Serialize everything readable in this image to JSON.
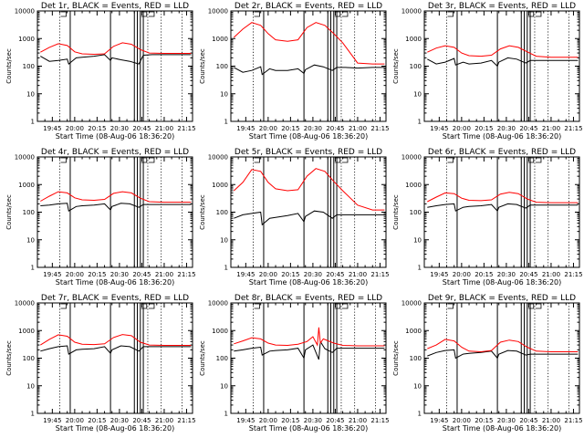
{
  "colors": {
    "events": "#000000",
    "lld": "#ff0000",
    "background": "#ffffff"
  },
  "chart_data": [
    {
      "type": "line",
      "title": "Det 1r, BLACK = Events, RED = LLD",
      "xlabel": "Start Time (08-Aug-06 18:36:20)",
      "ylabel": "Counts/sec",
      "y_scale": "log",
      "ylim": [
        1,
        10000
      ],
      "y_ticks": [
        "1",
        "10",
        "100",
        "1000",
        "10000"
      ],
      "x_ticks": [
        "19:45",
        "20:00",
        "20:15",
        "20:30",
        "20:45",
        "21:00",
        "21:15"
      ],
      "series": [
        {
          "name": "BLACK = Events",
          "color": "#000000",
          "x": [
            "19:37",
            "19:43",
            "19:49",
            "19:55",
            "19:56",
            "20:01",
            "20:05",
            "20:13",
            "20:20",
            "20:24",
            "20:25",
            "20:31",
            "20:37",
            "20:43",
            "20:46",
            "20:52",
            "21:00",
            "21:10",
            "21:18"
          ],
          "values": [
            230,
            150,
            160,
            180,
            120,
            200,
            210,
            230,
            260,
            160,
            200,
            170,
            150,
            120,
            250,
            260,
            260,
            260,
            260
          ]
        },
        {
          "name": "RED = LLD",
          "color": "#ff0000",
          "x": [
            "19:37",
            "19:43",
            "19:49",
            "19:55",
            "20:00",
            "20:05",
            "20:13",
            "20:20",
            "20:26",
            "20:32",
            "20:38",
            "20:44",
            "20:50",
            "21:00",
            "21:10",
            "21:18"
          ],
          "values": [
            320,
            480,
            650,
            560,
            330,
            280,
            270,
            280,
            520,
            700,
            620,
            400,
            300,
            290,
            290,
            290
          ]
        }
      ]
    },
    {
      "type": "line",
      "title": "Det 2r, BLACK = Events, RED = LLD",
      "xlabel": "Start Time (08-Aug-06 18:36:20)",
      "ylabel": "Counts/sec",
      "y_scale": "log",
      "ylim": [
        1,
        10000
      ],
      "y_ticks": [
        "1",
        "10",
        "100",
        "1000",
        "10000"
      ],
      "x_ticks": [
        "19:45",
        "20:00",
        "20:15",
        "20:30",
        "20:45",
        "21:00",
        "21:15"
      ],
      "series": [
        {
          "name": "BLACK = Events",
          "color": "#000000",
          "x": [
            "19:37",
            "19:43",
            "19:49",
            "19:55",
            "19:56",
            "20:01",
            "20:05",
            "20:13",
            "20:20",
            "20:24",
            "20:25",
            "20:31",
            "20:37",
            "20:43",
            "20:46",
            "20:52",
            "21:00",
            "21:10",
            "21:18"
          ],
          "values": [
            90,
            60,
            70,
            95,
            50,
            80,
            70,
            70,
            80,
            55,
            75,
            110,
            95,
            70,
            90,
            90,
            85,
            90,
            90
          ]
        },
        {
          "name": "RED = LLD",
          "color": "#ff0000",
          "x": [
            "19:37",
            "19:43",
            "19:49",
            "19:55",
            "20:00",
            "20:05",
            "20:13",
            "20:20",
            "20:26",
            "20:32",
            "20:38",
            "20:44",
            "20:50",
            "21:00",
            "21:10",
            "21:18"
          ],
          "values": [
            1100,
            2200,
            3800,
            3000,
            1500,
            900,
            800,
            900,
            2500,
            3800,
            3000,
            1500,
            700,
            130,
            120,
            120
          ]
        }
      ]
    },
    {
      "type": "line",
      "title": "Det 3r, BLACK = Events, RED = LLD",
      "xlabel": "Start Time (08-Aug-06 18:36:20)",
      "ylabel": "Counts/sec",
      "y_scale": "log",
      "ylim": [
        1,
        10000
      ],
      "y_ticks": [
        "1",
        "10",
        "100",
        "1000",
        "10000"
      ],
      "x_ticks": [
        "19:45",
        "20:00",
        "20:15",
        "20:30",
        "20:45",
        "21:00",
        "21:15"
      ],
      "series": [
        {
          "name": "BLACK = Events",
          "color": "#000000",
          "x": [
            "19:37",
            "19:43",
            "19:49",
            "19:55",
            "19:56",
            "20:01",
            "20:05",
            "20:13",
            "20:20",
            "20:24",
            "20:25",
            "20:31",
            "20:37",
            "20:43",
            "20:46",
            "20:52",
            "21:00",
            "21:10",
            "21:18"
          ],
          "values": [
            180,
            120,
            140,
            190,
            110,
            140,
            120,
            130,
            160,
            100,
            140,
            200,
            180,
            130,
            160,
            160,
            160,
            160,
            160
          ]
        },
        {
          "name": "RED = LLD",
          "color": "#ff0000",
          "x": [
            "19:37",
            "19:43",
            "19:49",
            "19:55",
            "20:00",
            "20:05",
            "20:13",
            "20:20",
            "20:26",
            "20:32",
            "20:38",
            "20:44",
            "20:50",
            "21:00",
            "21:10",
            "21:18"
          ],
          "values": [
            320,
            450,
            550,
            480,
            300,
            240,
            230,
            250,
            420,
            550,
            480,
            330,
            230,
            210,
            210,
            210
          ]
        }
      ]
    },
    {
      "type": "line",
      "title": "Det 4r, BLACK = Events, RED = LLD",
      "xlabel": "Start Time (08-Aug-06 18:36:20)",
      "ylabel": "Counts/sec",
      "y_scale": "log",
      "ylim": [
        1,
        10000
      ],
      "y_ticks": [
        "1",
        "10",
        "100",
        "1000",
        "10000"
      ],
      "x_ticks": [
        "19:45",
        "20:00",
        "20:15",
        "20:30",
        "20:45",
        "21:00",
        "21:15"
      ],
      "series": [
        {
          "name": "BLACK = Events",
          "color": "#000000",
          "x": [
            "19:37",
            "19:43",
            "19:49",
            "19:55",
            "19:56",
            "20:01",
            "20:05",
            "20:13",
            "20:20",
            "20:24",
            "20:25",
            "20:31",
            "20:37",
            "20:43",
            "20:46",
            "20:52",
            "21:00",
            "21:10",
            "21:18"
          ],
          "values": [
            170,
            180,
            200,
            210,
            110,
            160,
            170,
            180,
            200,
            120,
            160,
            210,
            200,
            150,
            190,
            190,
            190,
            190,
            190
          ]
        },
        {
          "name": "RED = LLD",
          "color": "#ff0000",
          "x": [
            "19:37",
            "19:43",
            "19:49",
            "19:55",
            "20:00",
            "20:05",
            "20:13",
            "20:20",
            "20:26",
            "20:32",
            "20:38",
            "20:44",
            "20:50",
            "21:00",
            "21:10",
            "21:18"
          ],
          "values": [
            250,
            380,
            550,
            500,
            330,
            280,
            270,
            290,
            480,
            550,
            500,
            320,
            240,
            230,
            230,
            230
          ]
        }
      ]
    },
    {
      "type": "line",
      "title": "Det 5r, BLACK = Events, RED = LLD",
      "xlabel": "Start Time (08-Aug-06 18:36:20)",
      "ylabel": "Counts/sec",
      "y_scale": "log",
      "ylim": [
        1,
        10000
      ],
      "y_ticks": [
        "1",
        "10",
        "100",
        "1000",
        "10000"
      ],
      "x_ticks": [
        "19:45",
        "20:00",
        "20:15",
        "20:30",
        "20:45",
        "21:00",
        "21:15"
      ],
      "series": [
        {
          "name": "BLACK = Events",
          "color": "#000000",
          "x": [
            "19:37",
            "19:43",
            "19:49",
            "19:55",
            "19:56",
            "20:01",
            "20:05",
            "20:13",
            "20:20",
            "20:24",
            "20:25",
            "20:31",
            "20:37",
            "20:43",
            "20:46",
            "20:52",
            "21:00",
            "21:10",
            "21:18"
          ],
          "values": [
            60,
            80,
            90,
            100,
            35,
            60,
            65,
            75,
            90,
            45,
            70,
            110,
            100,
            60,
            80,
            80,
            80,
            80,
            80
          ]
        },
        {
          "name": "RED = LLD",
          "color": "#ff0000",
          "x": [
            "19:37",
            "19:43",
            "19:49",
            "19:55",
            "20:00",
            "20:05",
            "20:13",
            "20:20",
            "20:26",
            "20:32",
            "20:38",
            "20:44",
            "20:50",
            "21:00",
            "21:10",
            "21:18"
          ],
          "values": [
            600,
            1200,
            3500,
            3000,
            1200,
            700,
            600,
            650,
            2000,
            3800,
            3000,
            1300,
            600,
            180,
            120,
            120
          ]
        }
      ]
    },
    {
      "type": "line",
      "title": "Det 6r, BLACK = Events, RED = LLD",
      "xlabel": "Start Time (08-Aug-06 18:36:20)",
      "ylabel": "Counts/sec",
      "y_scale": "log",
      "ylim": [
        1,
        10000
      ],
      "y_ticks": [
        "1",
        "10",
        "100",
        "1000",
        "10000"
      ],
      "x_ticks": [
        "19:45",
        "20:00",
        "20:15",
        "20:30",
        "20:45",
        "21:00",
        "21:15"
      ],
      "series": [
        {
          "name": "BLACK = Events",
          "color": "#000000",
          "x": [
            "19:37",
            "19:43",
            "19:49",
            "19:55",
            "19:56",
            "20:01",
            "20:05",
            "20:13",
            "20:20",
            "20:24",
            "20:25",
            "20:31",
            "20:37",
            "20:43",
            "20:46",
            "20:52",
            "21:00",
            "21:10",
            "21:18"
          ],
          "values": [
            150,
            170,
            190,
            200,
            110,
            150,
            160,
            170,
            190,
            110,
            150,
            200,
            190,
            140,
            180,
            180,
            180,
            180,
            180
          ]
        },
        {
          "name": "RED = LLD",
          "color": "#ff0000",
          "x": [
            "19:37",
            "19:43",
            "19:49",
            "19:55",
            "20:00",
            "20:05",
            "20:13",
            "20:20",
            "20:26",
            "20:32",
            "20:38",
            "20:44",
            "20:50",
            "21:00",
            "21:10",
            "21:18"
          ],
          "values": [
            240,
            350,
            500,
            470,
            320,
            270,
            260,
            280,
            450,
            520,
            470,
            300,
            230,
            220,
            220,
            220
          ]
        }
      ]
    },
    {
      "type": "line",
      "title": "Det 7r, BLACK = Events, RED = LLD",
      "xlabel": "Start Time (08-Aug-06 18:36:20)",
      "ylabel": "Counts/sec",
      "y_scale": "log",
      "ylim": [
        1,
        10000
      ],
      "y_ticks": [
        "1",
        "10",
        "100",
        "1000",
        "10000"
      ],
      "x_ticks": [
        "19:45",
        "20:00",
        "20:15",
        "20:30",
        "20:45",
        "21:00",
        "21:15"
      ],
      "series": [
        {
          "name": "BLACK = Events",
          "color": "#000000",
          "x": [
            "19:37",
            "19:43",
            "19:49",
            "19:55",
            "19:56",
            "20:01",
            "20:05",
            "20:13",
            "20:20",
            "20:24",
            "20:25",
            "20:31",
            "20:37",
            "20:43",
            "20:46",
            "20:52",
            "21:00",
            "21:10",
            "21:18"
          ],
          "values": [
            180,
            220,
            260,
            280,
            140,
            200,
            210,
            220,
            260,
            150,
            200,
            280,
            260,
            180,
            260,
            260,
            260,
            260,
            260
          ]
        },
        {
          "name": "RED = LLD",
          "color": "#ff0000",
          "x": [
            "19:37",
            "19:43",
            "19:49",
            "19:55",
            "20:00",
            "20:05",
            "20:13",
            "20:20",
            "20:26",
            "20:32",
            "20:38",
            "20:44",
            "20:50",
            "21:00",
            "21:10",
            "21:18"
          ],
          "values": [
            300,
            480,
            700,
            620,
            380,
            320,
            310,
            330,
            560,
            720,
            650,
            380,
            300,
            290,
            290,
            290
          ]
        }
      ]
    },
    {
      "type": "line",
      "title": "Det 8r, BLACK = Events, RED = LLD",
      "xlabel": "Start Time (08-Aug-06 18:36:20)",
      "ylabel": "Counts/sec",
      "y_scale": "log",
      "ylim": [
        1,
        10000
      ],
      "y_ticks": [
        "1",
        "10",
        "100",
        "1000",
        "10000"
      ],
      "x_ticks": [
        "19:45",
        "20:00",
        "20:15",
        "20:30",
        "20:45",
        "21:00",
        "21:15"
      ],
      "series": [
        {
          "name": "BLACK = Events",
          "color": "#000000",
          "x": [
            "19:37",
            "19:43",
            "19:49",
            "19:55",
            "19:56",
            "20:01",
            "20:05",
            "20:13",
            "20:20",
            "20:24",
            "20:25",
            "20:30",
            "20:34",
            "20:35",
            "20:38",
            "20:43",
            "20:46",
            "20:52",
            "21:00",
            "21:10",
            "21:18"
          ],
          "values": [
            180,
            200,
            230,
            250,
            130,
            180,
            190,
            200,
            230,
            100,
            200,
            300,
            90,
            400,
            220,
            160,
            230,
            230,
            230,
            230,
            230
          ]
        },
        {
          "name": "RED = LLD",
          "color": "#ff0000",
          "x": [
            "19:37",
            "19:43",
            "19:49",
            "19:55",
            "20:00",
            "20:05",
            "20:13",
            "20:20",
            "20:26",
            "20:30",
            "20:33",
            "20:34",
            "20:35",
            "20:37",
            "20:44",
            "20:50",
            "21:00",
            "21:10",
            "21:18"
          ],
          "values": [
            330,
            420,
            550,
            500,
            350,
            300,
            290,
            320,
            400,
            600,
            300,
            1300,
            350,
            500,
            350,
            290,
            280,
            280,
            280
          ]
        }
      ]
    },
    {
      "type": "line",
      "title": "Det 9r, BLACK = Events, RED = LLD",
      "xlabel": "Start Time (08-Aug-06 18:36:20)",
      "ylabel": "Counts/sec",
      "y_scale": "log",
      "ylim": [
        1,
        10000
      ],
      "y_ticks": [
        "1",
        "10",
        "100",
        "1000",
        "10000"
      ],
      "x_ticks": [
        "19:45",
        "20:00",
        "20:15",
        "20:30",
        "20:45",
        "21:00",
        "21:15"
      ],
      "series": [
        {
          "name": "BLACK = Events",
          "color": "#000000",
          "x": [
            "19:37",
            "19:43",
            "19:49",
            "19:55",
            "19:56",
            "20:01",
            "20:05",
            "20:13",
            "20:20",
            "20:24",
            "20:25",
            "20:31",
            "20:37",
            "20:43",
            "20:46",
            "20:52",
            "21:00",
            "21:10",
            "21:18"
          ],
          "values": [
            120,
            160,
            190,
            200,
            100,
            140,
            150,
            160,
            180,
            100,
            140,
            190,
            180,
            130,
            140,
            140,
            140,
            140,
            140
          ]
        },
        {
          "name": "RED = LLD",
          "color": "#ff0000",
          "x": [
            "19:37",
            "19:43",
            "19:49",
            "19:55",
            "20:00",
            "20:05",
            "20:13",
            "20:20",
            "20:26",
            "20:32",
            "20:38",
            "20:44",
            "20:50",
            "21:00",
            "21:10",
            "21:18"
          ],
          "values": [
            220,
            300,
            480,
            420,
            250,
            180,
            170,
            190,
            380,
            450,
            400,
            250,
            180,
            170,
            170,
            170
          ]
        }
      ]
    }
  ]
}
